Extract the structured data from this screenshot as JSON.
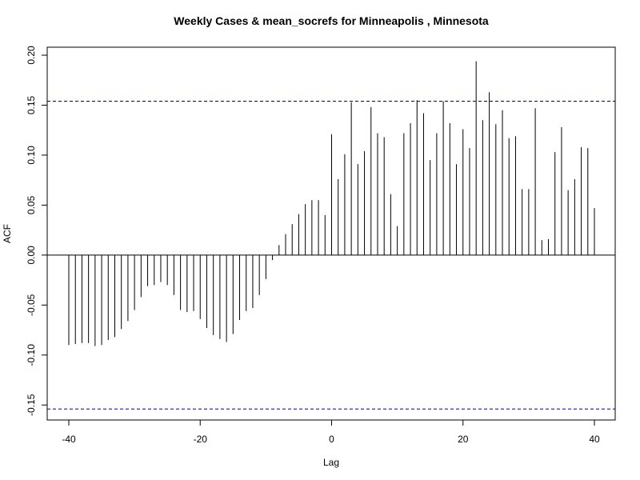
{
  "chart_data": {
    "type": "bar",
    "title": "Weekly Cases & mean_socrefs for Minneapolis , Minnesota",
    "xlabel": "Lag",
    "ylabel": "ACF",
    "xlim": [
      -40,
      40
    ],
    "ylim": [
      -0.165,
      0.208
    ],
    "x_ticks": [
      -40,
      -20,
      0,
      20,
      40
    ],
    "y_ticks": [
      -0.15,
      -0.1,
      -0.05,
      0.0,
      0.05,
      0.1,
      0.15,
      0.2
    ],
    "x_tick_labels": [
      "-40",
      "-20",
      "0",
      "20",
      "40"
    ],
    "y_tick_labels": [
      "-0.15",
      "-0.10",
      "-0.05",
      "0.00",
      "0.05",
      "0.10",
      "0.15",
      "0.20"
    ],
    "confidence_bounds": [
      0.154,
      -0.154
    ],
    "confidence_color": "#00008b",
    "bar_color": "#000000",
    "lags": [
      -40,
      -39,
      -38,
      -37,
      -36,
      -35,
      -34,
      -33,
      -32,
      -31,
      -30,
      -29,
      -28,
      -27,
      -26,
      -25,
      -24,
      -23,
      -22,
      -21,
      -20,
      -19,
      -18,
      -17,
      -16,
      -15,
      -14,
      -13,
      -12,
      -11,
      -10,
      -9,
      -8,
      -7,
      -6,
      -5,
      -4,
      -3,
      -2,
      -1,
      0,
      1,
      2,
      3,
      4,
      5,
      6,
      7,
      8,
      9,
      10,
      11,
      12,
      13,
      14,
      15,
      16,
      17,
      18,
      19,
      20,
      21,
      22,
      23,
      24,
      25,
      26,
      27,
      28,
      29,
      30,
      31,
      32,
      33,
      34,
      35,
      36,
      37,
      38,
      39,
      40
    ],
    "values": [
      -0.09,
      -0.089,
      -0.088,
      -0.088,
      -0.091,
      -0.09,
      -0.085,
      -0.082,
      -0.074,
      -0.066,
      -0.055,
      -0.042,
      -0.031,
      -0.03,
      -0.027,
      -0.03,
      -0.04,
      -0.055,
      -0.057,
      -0.056,
      -0.064,
      -0.073,
      -0.08,
      -0.084,
      -0.087,
      -0.079,
      -0.065,
      -0.056,
      -0.053,
      -0.04,
      -0.024,
      -0.005,
      0.01,
      0.021,
      0.031,
      0.041,
      0.051,
      0.055,
      0.055,
      0.04,
      0.121,
      0.076,
      0.101,
      0.153,
      0.091,
      0.104,
      0.148,
      0.122,
      0.118,
      0.061,
      0.029,
      0.122,
      0.132,
      0.155,
      0.142,
      0.095,
      0.122,
      0.154,
      0.132,
      0.091,
      0.126,
      0.107,
      0.194,
      0.135,
      0.163,
      0.131,
      0.145,
      0.117,
      0.119,
      0.066,
      0.066,
      0.147,
      0.015,
      0.016,
      0.103,
      0.128,
      0.065,
      0.076,
      0.108,
      0.107,
      0.047
    ]
  }
}
